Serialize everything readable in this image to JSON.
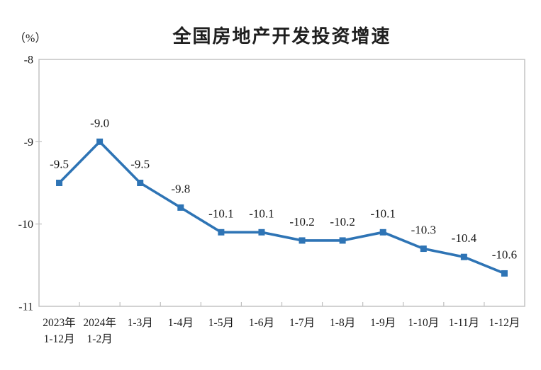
{
  "title": "全国房地产开发投资增速",
  "y_unit_label": "（%）",
  "chart_data": {
    "type": "line",
    "title": "全国房地产开发投资增速",
    "ylabel": "（%）",
    "xlabel": "",
    "categories": [
      [
        "2023年",
        "1-12月"
      ],
      [
        "2024年",
        "1-2月"
      ],
      [
        "1-3月"
      ],
      [
        "1-4月"
      ],
      [
        "1-5月"
      ],
      [
        "1-6月"
      ],
      [
        "1-7月"
      ],
      [
        "1-8月"
      ],
      [
        "1-9月"
      ],
      [
        "1-10月"
      ],
      [
        "1-11月"
      ],
      [
        "1-12月"
      ]
    ],
    "values": [
      -9.5,
      -9.0,
      -9.5,
      -9.8,
      -10.1,
      -10.1,
      -10.2,
      -10.2,
      -10.1,
      -10.3,
      -10.4,
      -10.6
    ],
    "data_labels": [
      "-9.5",
      "-9.0",
      "-9.5",
      "-9.8",
      "-10.1",
      "-10.1",
      "-10.2",
      "-10.2",
      "-10.1",
      "-10.3",
      "-10.4",
      "-10.6"
    ],
    "ylim": [
      -11,
      -8
    ],
    "yticks": [
      -8,
      -9,
      -10,
      -11
    ],
    "ytick_labels": [
      "-8",
      "-9",
      "-10",
      "-11"
    ],
    "grid": false,
    "legend": false,
    "line_color": "#2E74B5",
    "marker": "square",
    "axis_color": "#BFBFBF",
    "text_color": "#1a1a1a"
  }
}
